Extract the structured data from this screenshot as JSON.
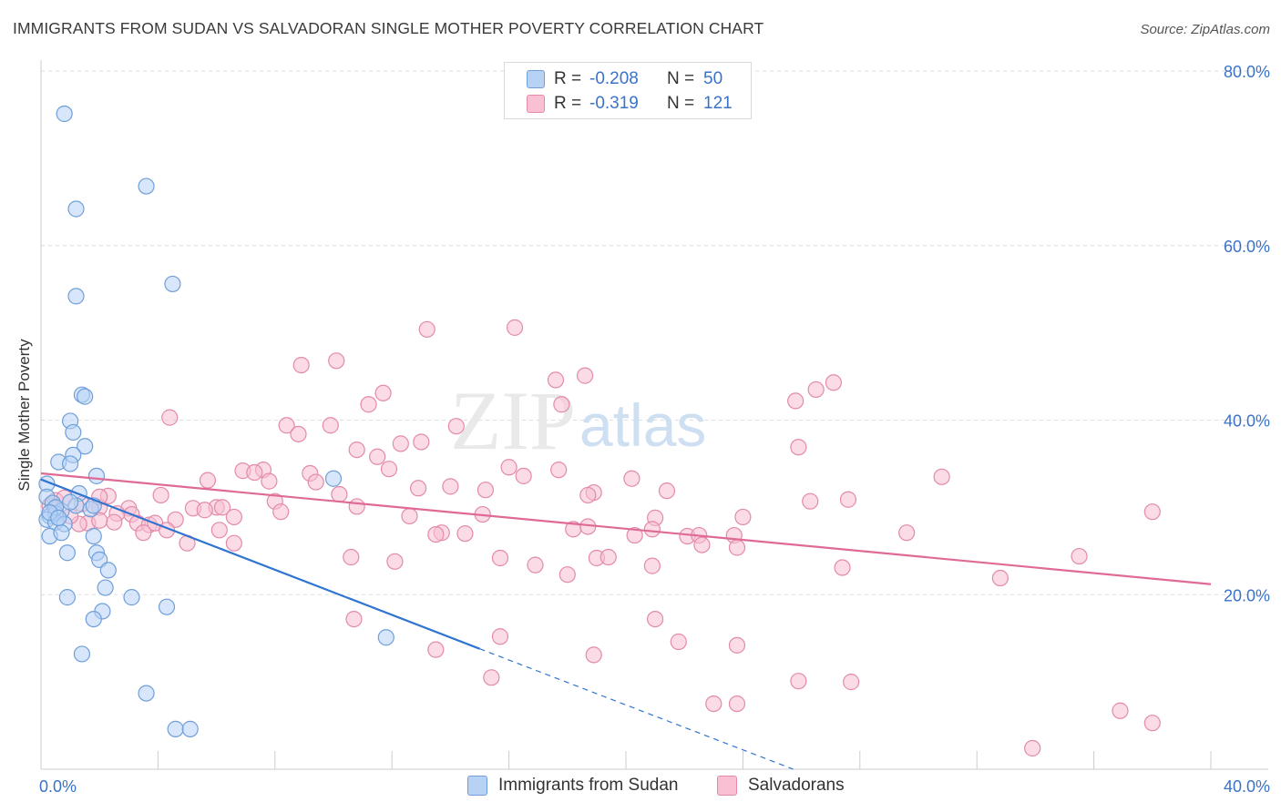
{
  "title": "IMMIGRANTS FROM SUDAN VS SALVADORAN SINGLE MOTHER POVERTY CORRELATION CHART",
  "source": "Source: ZipAtlas.com",
  "watermark": {
    "zip": "ZIP",
    "atlas": "atlas"
  },
  "legend": {
    "rows": [
      {
        "r_label": "R =",
        "r_value": "-0.208",
        "n_label": "N =",
        "n_value": "50"
      },
      {
        "r_label": "R =",
        "r_value": "-0.319",
        "n_label": "N =",
        "n_value": "121"
      }
    ]
  },
  "bottom_legend": [
    {
      "label": "Immigrants from Sudan"
    },
    {
      "label": "Salvadorans"
    }
  ],
  "colors": {
    "blue_fill": "#b7d2f5",
    "blue_stroke": "#6f9fd8",
    "blue_line": "#2f74d0",
    "pink_fill": "#f8c0d2",
    "pink_stroke": "#e38aaa",
    "pink_line": "#e06a96",
    "axis_label": "#3a72c8",
    "grid": "#dddddd"
  },
  "chart_data": {
    "type": "scatter",
    "title": "IMMIGRANTS FROM SUDAN VS SALVADORAN SINGLE MOTHER POVERTY CORRELATION CHART",
    "xlabel": "",
    "ylabel": "Single Mother Poverty",
    "xlim": [
      0,
      40
    ],
    "ylim": [
      0,
      80
    ],
    "x_tick_labels": [
      "0.0%",
      "40.0%"
    ],
    "y_tick_labels": [
      "20.0%",
      "40.0%",
      "60.0%",
      "80.0%"
    ],
    "y_ticks": [
      20,
      40,
      60,
      80
    ],
    "grid": true,
    "series": [
      {
        "name": "Immigrants from Sudan",
        "color": "blue",
        "points": [
          [
            0.8,
            75.1
          ],
          [
            3.6,
            66.8
          ],
          [
            1.2,
            64.2
          ],
          [
            4.5,
            55.6
          ],
          [
            1.2,
            54.2
          ],
          [
            1.4,
            42.9
          ],
          [
            1.5,
            42.7
          ],
          [
            1.0,
            39.9
          ],
          [
            1.1,
            38.6
          ],
          [
            1.5,
            37.0
          ],
          [
            1.1,
            36.0
          ],
          [
            0.6,
            35.2
          ],
          [
            1.0,
            35.0
          ],
          [
            1.9,
            33.6
          ],
          [
            10.0,
            33.3
          ],
          [
            0.2,
            32.7
          ],
          [
            0.2,
            31.2
          ],
          [
            1.3,
            31.6
          ],
          [
            0.4,
            30.5
          ],
          [
            1.2,
            30.2
          ],
          [
            1.7,
            29.8
          ],
          [
            1.8,
            30.2
          ],
          [
            0.7,
            29.6
          ],
          [
            0.3,
            29.0
          ],
          [
            0.5,
            29.3
          ],
          [
            0.2,
            28.6
          ],
          [
            0.5,
            28.3
          ],
          [
            0.8,
            28.1
          ],
          [
            0.3,
            26.7
          ],
          [
            0.7,
            27.1
          ],
          [
            1.8,
            26.7
          ],
          [
            0.9,
            24.8
          ],
          [
            1.9,
            24.8
          ],
          [
            2.0,
            24.0
          ],
          [
            2.3,
            22.8
          ],
          [
            2.2,
            20.8
          ],
          [
            0.9,
            19.7
          ],
          [
            3.1,
            19.7
          ],
          [
            4.3,
            18.6
          ],
          [
            2.1,
            18.1
          ],
          [
            1.8,
            17.2
          ],
          [
            11.8,
            15.1
          ],
          [
            1.4,
            13.2
          ],
          [
            3.6,
            8.7
          ],
          [
            4.6,
            4.6
          ],
          [
            5.1,
            4.6
          ],
          [
            0.5,
            30.0
          ],
          [
            0.3,
            29.4
          ],
          [
            1.0,
            30.6
          ],
          [
            0.6,
            28.8
          ]
        ],
        "trend": {
          "x": [
            0,
            15
          ],
          "y": [
            33.2,
            13.8
          ]
        },
        "trend_dashed": {
          "x": [
            15,
            26.5
          ],
          "y": [
            13.8,
            -1.0
          ]
        }
      },
      {
        "name": "Salvadorans",
        "color": "pink",
        "points": [
          [
            16.2,
            50.6
          ],
          [
            13.2,
            50.4
          ],
          [
            10.1,
            46.8
          ],
          [
            8.9,
            46.3
          ],
          [
            18.6,
            45.1
          ],
          [
            17.6,
            44.6
          ],
          [
            27.1,
            44.3
          ],
          [
            26.5,
            43.5
          ],
          [
            11.7,
            43.1
          ],
          [
            25.8,
            42.2
          ],
          [
            11.2,
            41.8
          ],
          [
            17.8,
            41.8
          ],
          [
            4.4,
            40.3
          ],
          [
            8.4,
            39.4
          ],
          [
            9.9,
            39.4
          ],
          [
            14.2,
            39.3
          ],
          [
            8.8,
            38.4
          ],
          [
            12.3,
            37.3
          ],
          [
            13.0,
            37.5
          ],
          [
            25.9,
            36.9
          ],
          [
            10.8,
            36.6
          ],
          [
            11.5,
            35.8
          ],
          [
            16.0,
            34.6
          ],
          [
            11.9,
            34.4
          ],
          [
            17.7,
            34.3
          ],
          [
            6.9,
            34.2
          ],
          [
            7.6,
            34.3
          ],
          [
            7.3,
            34.0
          ],
          [
            9.2,
            33.9
          ],
          [
            16.5,
            33.6
          ],
          [
            30.8,
            33.5
          ],
          [
            5.7,
            33.1
          ],
          [
            7.8,
            33.0
          ],
          [
            9.4,
            32.9
          ],
          [
            20.2,
            33.3
          ],
          [
            14.0,
            32.4
          ],
          [
            12.9,
            32.2
          ],
          [
            15.2,
            32.0
          ],
          [
            18.9,
            31.7
          ],
          [
            21.4,
            31.9
          ],
          [
            10.2,
            31.5
          ],
          [
            4.1,
            31.4
          ],
          [
            2.3,
            31.3
          ],
          [
            8.0,
            30.7
          ],
          [
            18.7,
            31.4
          ],
          [
            26.3,
            30.7
          ],
          [
            27.6,
            30.9
          ],
          [
            10.8,
            30.1
          ],
          [
            5.2,
            29.9
          ],
          [
            6.0,
            30.0
          ],
          [
            6.2,
            30.0
          ],
          [
            2.0,
            30.0
          ],
          [
            3.0,
            29.9
          ],
          [
            5.6,
            29.7
          ],
          [
            8.2,
            29.5
          ],
          [
            2.6,
            29.3
          ],
          [
            3.1,
            29.2
          ],
          [
            15.1,
            29.2
          ],
          [
            12.6,
            29.0
          ],
          [
            6.6,
            28.9
          ],
          [
            21.0,
            28.8
          ],
          [
            24.0,
            28.9
          ],
          [
            4.6,
            28.6
          ],
          [
            1.6,
            28.2
          ],
          [
            2.5,
            28.3
          ],
          [
            3.3,
            28.2
          ],
          [
            2.0,
            28.5
          ],
          [
            3.7,
            28.0
          ],
          [
            3.9,
            28.2
          ],
          [
            1.3,
            28.1
          ],
          [
            18.2,
            27.5
          ],
          [
            18.7,
            27.8
          ],
          [
            20.9,
            27.5
          ],
          [
            4.3,
            27.4
          ],
          [
            6.1,
            27.4
          ],
          [
            3.5,
            27.1
          ],
          [
            13.7,
            27.1
          ],
          [
            14.5,
            27.0
          ],
          [
            13.5,
            26.9
          ],
          [
            29.6,
            27.1
          ],
          [
            20.3,
            26.8
          ],
          [
            22.1,
            26.7
          ],
          [
            22.5,
            26.8
          ],
          [
            23.7,
            26.8
          ],
          [
            6.6,
            25.9
          ],
          [
            5.0,
            25.9
          ],
          [
            22.6,
            25.7
          ],
          [
            23.8,
            25.4
          ],
          [
            35.5,
            24.4
          ],
          [
            10.6,
            24.3
          ],
          [
            15.7,
            24.2
          ],
          [
            19.0,
            24.2
          ],
          [
            19.4,
            24.3
          ],
          [
            12.1,
            23.8
          ],
          [
            16.9,
            23.4
          ],
          [
            20.9,
            23.3
          ],
          [
            27.4,
            23.1
          ],
          [
            18.0,
            22.3
          ],
          [
            32.8,
            21.9
          ],
          [
            10.7,
            17.2
          ],
          [
            21.0,
            17.2
          ],
          [
            15.7,
            15.2
          ],
          [
            21.8,
            14.6
          ],
          [
            23.8,
            14.2
          ],
          [
            18.9,
            13.1
          ],
          [
            13.5,
            13.7
          ],
          [
            15.4,
            10.5
          ],
          [
            25.9,
            10.1
          ],
          [
            27.7,
            10.0
          ],
          [
            23.0,
            7.5
          ],
          [
            23.8,
            7.5
          ],
          [
            36.9,
            6.7
          ],
          [
            38.0,
            5.3
          ],
          [
            33.9,
            2.4
          ],
          [
            38.0,
            29.5
          ],
          [
            0.3,
            30.2
          ],
          [
            0.5,
            30.8
          ],
          [
            1.4,
            30.4
          ],
          [
            0.8,
            31.1
          ],
          [
            2.0,
            31.2
          ],
          [
            1.0,
            29.0
          ]
        ],
        "trend": {
          "x": [
            0,
            40
          ],
          "y": [
            33.9,
            21.2
          ]
        }
      }
    ]
  }
}
